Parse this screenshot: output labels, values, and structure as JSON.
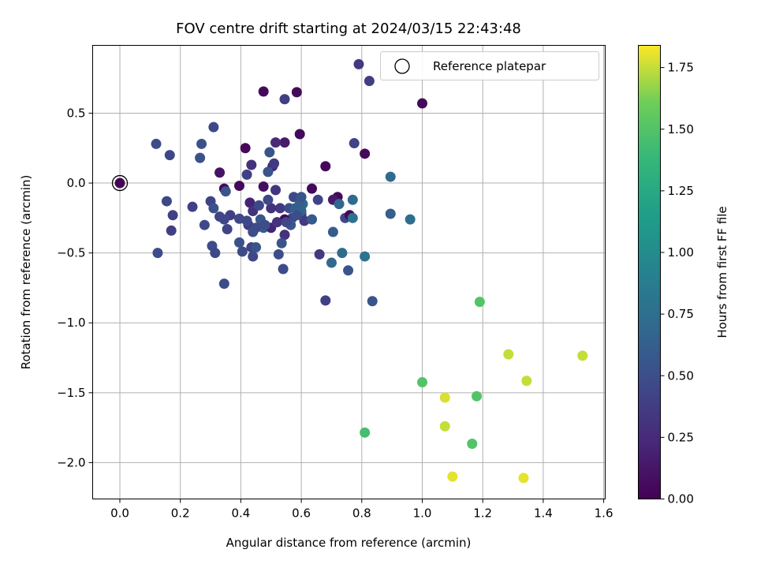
{
  "chart_data": {
    "type": "scatter",
    "title": "FOV centre drift starting at 2024/03/15 22:43:48",
    "xlabel": "Angular distance from reference (arcmin)",
    "ylabel": "Rotation from reference (arcmin)",
    "xlim": [
      -0.09,
      1.605
    ],
    "ylim": [
      -2.26,
      0.985
    ],
    "x_ticks": [
      0.0,
      0.2,
      0.4,
      0.6,
      0.8,
      1.0,
      1.2,
      1.4,
      1.6
    ],
    "x_tick_labels": [
      "0.0",
      "0.2",
      "0.4",
      "0.6",
      "0.8",
      "1.0",
      "1.2",
      "1.4",
      "1.6"
    ],
    "y_ticks": [
      0.5,
      0.0,
      -0.5,
      -1.0,
      -1.5,
      -2.0
    ],
    "y_tick_labels": [
      "0.5",
      "0.0",
      "−0.5",
      "−1.0",
      "−1.5",
      "−2.0"
    ],
    "grid": true,
    "legend": {
      "position": "top-right",
      "entries": [
        "Reference platepar"
      ]
    },
    "colorbar": {
      "label": "Hours from first FF file",
      "colormap": "viridis",
      "range": [
        0.0,
        1.84
      ],
      "ticks": [
        0.0,
        0.25,
        0.5,
        0.75,
        1.0,
        1.25,
        1.5,
        1.75
      ],
      "tick_labels": [
        "0.00",
        "0.25",
        "0.50",
        "0.75",
        "1.00",
        "1.25",
        "1.50",
        "1.75"
      ]
    },
    "reference_point": {
      "x": 0.0,
      "y": 0.0
    },
    "points": [
      [
        0.0,
        0.0,
        0.0
      ],
      [
        0.475,
        0.655,
        0.05
      ],
      [
        0.585,
        0.65,
        0.05
      ],
      [
        0.595,
        0.35,
        0.05
      ],
      [
        0.415,
        0.25,
        0.05
      ],
      [
        0.545,
        0.29,
        0.15
      ],
      [
        0.68,
        0.12,
        0.05
      ],
      [
        0.81,
        0.21,
        0.05
      ],
      [
        1.0,
        0.57,
        0.05
      ],
      [
        0.79,
        0.85,
        0.35
      ],
      [
        0.825,
        0.73,
        0.38
      ],
      [
        0.545,
        0.6,
        0.38
      ],
      [
        0.515,
        0.29,
        0.25
      ],
      [
        0.31,
        0.4,
        0.45
      ],
      [
        0.12,
        0.28,
        0.48
      ],
      [
        0.165,
        0.2,
        0.45
      ],
      [
        0.27,
        0.28,
        0.52
      ],
      [
        0.265,
        0.18,
        0.52
      ],
      [
        0.495,
        0.22,
        0.55
      ],
      [
        0.775,
        0.285,
        0.42
      ],
      [
        0.895,
        0.045,
        0.72
      ],
      [
        0.505,
        0.12,
        0.22
      ],
      [
        0.51,
        0.14,
        0.35
      ],
      [
        0.33,
        0.075,
        0.1
      ],
      [
        0.435,
        0.13,
        0.3
      ],
      [
        0.42,
        0.06,
        0.4
      ],
      [
        0.49,
        0.08,
        0.55
      ],
      [
        0.345,
        -0.04,
        0.05
      ],
      [
        0.395,
        -0.02,
        0.05
      ],
      [
        0.475,
        -0.025,
        0.08
      ],
      [
        0.635,
        -0.04,
        0.05
      ],
      [
        0.72,
        -0.1,
        0.05
      ],
      [
        0.705,
        -0.12,
        0.15
      ],
      [
        0.77,
        -0.12,
        0.72
      ],
      [
        0.725,
        -0.15,
        0.68
      ],
      [
        0.605,
        -0.15,
        0.72
      ],
      [
        0.6,
        -0.22,
        0.62
      ],
      [
        0.59,
        -0.2,
        0.58
      ],
      [
        0.575,
        -0.1,
        0.45
      ],
      [
        0.57,
        -0.25,
        0.45
      ],
      [
        0.545,
        -0.26,
        0.05
      ],
      [
        0.53,
        -0.18,
        0.35
      ],
      [
        0.5,
        -0.18,
        0.3
      ],
      [
        0.49,
        -0.12,
        0.45
      ],
      [
        0.515,
        -0.05,
        0.32
      ],
      [
        0.43,
        -0.14,
        0.2
      ],
      [
        0.44,
        -0.2,
        0.3
      ],
      [
        0.46,
        -0.16,
        0.45
      ],
      [
        0.465,
        -0.26,
        0.55
      ],
      [
        0.475,
        -0.32,
        0.6
      ],
      [
        0.5,
        -0.32,
        0.2
      ],
      [
        0.52,
        -0.28,
        0.3
      ],
      [
        0.545,
        -0.37,
        0.3
      ],
      [
        0.425,
        -0.3,
        0.35
      ],
      [
        0.42,
        -0.27,
        0.45
      ],
      [
        0.395,
        -0.255,
        0.45
      ],
      [
        0.365,
        -0.23,
        0.38
      ],
      [
        0.33,
        -0.24,
        0.42
      ],
      [
        0.345,
        -0.26,
        0.45
      ],
      [
        0.355,
        -0.33,
        0.42
      ],
      [
        0.3,
        -0.13,
        0.42
      ],
      [
        0.31,
        -0.18,
        0.52
      ],
      [
        0.35,
        -0.06,
        0.55
      ],
      [
        0.24,
        -0.17,
        0.4
      ],
      [
        0.155,
        -0.13,
        0.45
      ],
      [
        0.175,
        -0.23,
        0.4
      ],
      [
        0.17,
        -0.34,
        0.38
      ],
      [
        0.28,
        -0.3,
        0.45
      ],
      [
        0.125,
        -0.5,
        0.48
      ],
      [
        0.305,
        -0.45,
        0.5
      ],
      [
        0.315,
        -0.5,
        0.45
      ],
      [
        0.345,
        -0.72,
        0.48
      ],
      [
        0.395,
        -0.425,
        0.52
      ],
      [
        0.405,
        -0.49,
        0.48
      ],
      [
        0.435,
        -0.46,
        0.42
      ],
      [
        0.44,
        -0.525,
        0.45
      ],
      [
        0.45,
        -0.46,
        0.55
      ],
      [
        0.44,
        -0.35,
        0.5
      ],
      [
        0.45,
        -0.32,
        0.48
      ],
      [
        0.525,
        -0.51,
        0.5
      ],
      [
        0.535,
        -0.43,
        0.55
      ],
      [
        0.54,
        -0.615,
        0.48
      ],
      [
        0.6,
        -0.23,
        0.28
      ],
      [
        0.61,
        -0.27,
        0.35
      ],
      [
        0.635,
        -0.26,
        0.58
      ],
      [
        0.655,
        -0.12,
        0.42
      ],
      [
        0.66,
        -0.51,
        0.35
      ],
      [
        0.68,
        -0.84,
        0.4
      ],
      [
        0.7,
        -0.57,
        0.72
      ],
      [
        0.705,
        -0.35,
        0.6
      ],
      [
        0.735,
        -0.5,
        0.72
      ],
      [
        0.745,
        -0.25,
        0.45
      ],
      [
        0.755,
        -0.625,
        0.55
      ],
      [
        0.76,
        -0.23,
        0.05
      ],
      [
        0.77,
        -0.25,
        0.8
      ],
      [
        0.81,
        -0.525,
        0.78
      ],
      [
        0.835,
        -0.845,
        0.55
      ],
      [
        0.895,
        -0.22,
        0.62
      ],
      [
        0.96,
        -0.26,
        0.75
      ],
      [
        0.56,
        -0.18,
        0.5
      ],
      [
        0.565,
        -0.3,
        0.55
      ],
      [
        0.48,
        -0.3,
        0.5
      ],
      [
        0.58,
        -0.18,
        0.62
      ],
      [
        0.595,
        -0.15,
        0.62
      ],
      [
        0.6,
        -0.2,
        0.65
      ],
      [
        0.585,
        -0.23,
        0.5
      ],
      [
        0.6,
        -0.1,
        0.55
      ],
      [
        0.55,
        -0.28,
        0.45
      ],
      [
        1.19,
        -0.85,
        1.5
      ],
      [
        1.285,
        -1.225,
        1.75
      ],
      [
        1.53,
        -1.235,
        1.75
      ],
      [
        1.345,
        -1.415,
        1.75
      ],
      [
        1.0,
        -1.425,
        1.5
      ],
      [
        1.18,
        -1.525,
        1.5
      ],
      [
        1.075,
        -1.535,
        1.78
      ],
      [
        0.81,
        -1.785,
        1.45
      ],
      [
        1.075,
        -1.74,
        1.75
      ],
      [
        1.165,
        -1.865,
        1.5
      ],
      [
        1.1,
        -2.1,
        1.8
      ],
      [
        1.335,
        -2.11,
        1.8
      ]
    ]
  }
}
